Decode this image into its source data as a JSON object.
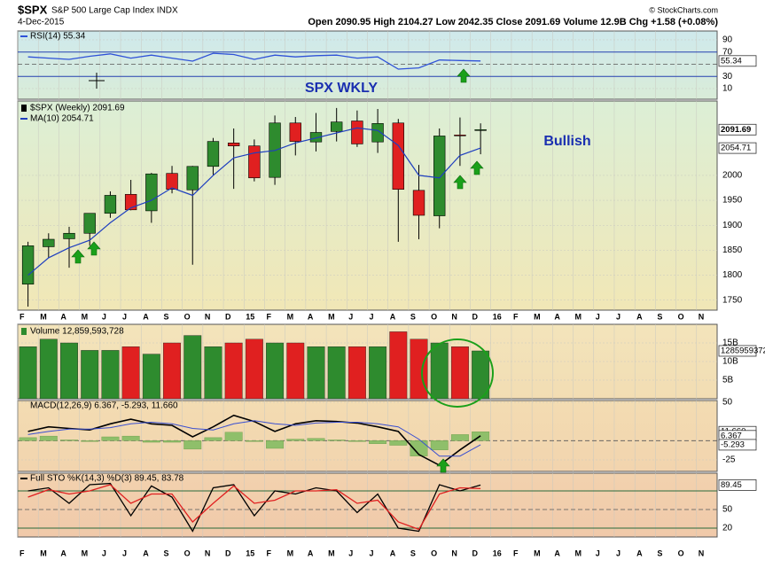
{
  "header": {
    "symbol": "$SPX",
    "name": "S&P 500 Large Cap Index INDX",
    "date": "4-Dec-2015",
    "quote": "Open 2090.95  High 2104.27  Low 2042.35  Close 2091.69  Volume 12.9B  Chg +1.58 (+0.08%)",
    "credit": "© StockCharts.com"
  },
  "chart_data": [
    {
      "type": "line",
      "legend": "RSI(14) 55.34",
      "series": [
        {
          "color": "#2f52d8",
          "values": [
            62,
            60,
            58,
            63,
            67,
            60,
            65,
            60,
            55,
            68,
            66,
            58,
            65,
            62,
            64,
            65,
            60,
            62,
            42,
            44,
            57,
            56,
            55.34
          ]
        }
      ],
      "ylim": [
        -7.5,
        104.5
      ],
      "yticks": [
        10,
        30,
        70,
        90
      ],
      "levels": [
        30,
        70
      ],
      "midline": 50,
      "last_values": [
        {
          "value": 55.34,
          "label": "55.34"
        }
      ]
    },
    {
      "type": "candlestick",
      "legend": "$SPX (Weekly) 2091.69",
      "x": [
        "2014-02",
        "2014-03",
        "2014-04",
        "2014-05",
        "2014-06",
        "2014-07",
        "2014-08",
        "2014-09",
        "2014-10",
        "2014-11",
        "2014-12",
        "2015-01",
        "2015-02",
        "2015-03",
        "2015-04",
        "2015-05",
        "2015-06",
        "2015-07",
        "2015-08",
        "2015-09",
        "2015-10",
        "2015-11",
        "2015-12"
      ],
      "open": [
        1782,
        1857,
        1873,
        1884,
        1924,
        1962,
        1929,
        2004,
        1971,
        2018,
        2065,
        2059,
        1996,
        2105,
        2067,
        2088,
        2109,
        2067,
        2105,
        1970,
        1919,
        2081,
        2090.95
      ],
      "high": [
        1867,
        1884,
        1897,
        1924,
        1968,
        1991,
        2005,
        2019,
        2019,
        2075,
        2094,
        2072,
        2120,
        2117,
        2125,
        2135,
        2130,
        2133,
        2113,
        2021,
        2094,
        2116,
        2104.27
      ],
      "low": [
        1737,
        1834,
        1815,
        1859,
        1915,
        1930,
        1905,
        1964,
        1821,
        2001,
        1973,
        1988,
        1981,
        2040,
        2048,
        2068,
        2057,
        2045,
        1867,
        1872,
        1894,
        2019,
        2042.35
      ],
      "close": [
        1859,
        1872,
        1884,
        1924,
        1960,
        1931,
        2003,
        1972,
        2018,
        2068,
        2059,
        1995,
        2105,
        2068,
        2086,
        2107,
        2063,
        2104,
        1972,
        1920,
        2079,
        2080,
        2091.69
      ],
      "up_color": "#2e8b2e",
      "down_color": "#e02020",
      "series": [
        {
          "name": "MA(10) 2054.71",
          "color": "#1f3fbf",
          "values": [
            1800,
            1835,
            1855,
            1870,
            1905,
            1935,
            1950,
            1975,
            1960,
            2000,
            2035,
            2045,
            2050,
            2065,
            2075,
            2085,
            2095,
            2090,
            2060,
            2000,
            1995,
            2040,
            2054.71
          ]
        }
      ],
      "ylim": [
        1730,
        2149
      ],
      "yticks": [
        1750,
        1800,
        1850,
        1900,
        1950,
        2000
      ],
      "last_values": [
        {
          "value": 2091.69,
          "label": "2091.69"
        },
        {
          "value": 2054.71,
          "label": "2054.71"
        }
      ],
      "annotations": [
        "SPX WKLY",
        "Bullish"
      ],
      "grid": true,
      "xlim": [
        "2014-02",
        "2016-12"
      ],
      "xticks": [
        {
          "value": "2014-02",
          "label": "F"
        },
        {
          "value": "2014-03",
          "label": "M"
        },
        {
          "value": "2014-04",
          "label": "A"
        },
        {
          "value": "2014-05",
          "label": "M"
        },
        {
          "value": "2014-06",
          "label": "J"
        },
        {
          "value": "2014-07",
          "label": "J"
        },
        {
          "value": "2014-08",
          "label": "A"
        },
        {
          "value": "2014-09",
          "label": "S"
        },
        {
          "value": "2014-10",
          "label": "O"
        },
        {
          "value": "2014-11",
          "label": "N"
        },
        {
          "value": "2014-12",
          "label": "D"
        },
        {
          "value": "2015-01",
          "label": "15"
        },
        {
          "value": "2015-02",
          "label": "F"
        },
        {
          "value": "2015-03",
          "label": "M"
        },
        {
          "value": "2015-04",
          "label": "A"
        },
        {
          "value": "2015-05",
          "label": "M"
        },
        {
          "value": "2015-06",
          "label": "J"
        },
        {
          "value": "2015-07",
          "label": "J"
        },
        {
          "value": "2015-08",
          "label": "A"
        },
        {
          "value": "2015-09",
          "label": "S"
        },
        {
          "value": "2015-10",
          "label": "O"
        },
        {
          "value": "2015-11",
          "label": "N"
        },
        {
          "value": "2015-12",
          "label": "D"
        },
        {
          "value": "2016-01",
          "label": "16"
        },
        {
          "value": "2016-02",
          "label": "F"
        },
        {
          "value": "2016-03",
          "label": "M"
        },
        {
          "value": "2016-04",
          "label": "A"
        },
        {
          "value": "2016-05",
          "label": "M"
        },
        {
          "value": "2016-06",
          "label": "J"
        },
        {
          "value": "2016-07",
          "label": "J"
        },
        {
          "value": "2016-08",
          "label": "A"
        },
        {
          "value": "2016-09",
          "label": "S"
        },
        {
          "value": "2016-10",
          "label": "O"
        },
        {
          "value": "2016-11",
          "label": "N"
        }
      ]
    },
    {
      "type": "bar",
      "legend": "Volume 12,859,593,728",
      "values": [
        14000000000,
        16000000000,
        15000000000,
        13000000000,
        13000000000,
        14000000000,
        12000000000,
        15000000000,
        17000000000,
        14000000000,
        15000000000,
        16000000000,
        15000000000,
        15000000000,
        14000000000,
        14000000000,
        14000000000,
        14000000000,
        18000000000,
        16000000000,
        15000000000,
        14000000000,
        12859593728
      ],
      "ylim": [
        0,
        20000000000
      ],
      "yticks": [
        {
          "value": 5000000000,
          "label": "5B"
        },
        {
          "value": 10000000000,
          "label": "10B"
        },
        {
          "value": 15000000000,
          "label": "15B"
        }
      ],
      "last_values": [
        {
          "value": 12859593728,
          "label": "12859593728"
        }
      ]
    },
    {
      "type": "macd",
      "legend": "MACD(12,26,9) 6.367, -5.293, 11.660",
      "series": [
        {
          "color": "#000000",
          "values": [
            12,
            18,
            16,
            14,
            22,
            28,
            22,
            20,
            5,
            18,
            33,
            25,
            12,
            22,
            26,
            25,
            23,
            18,
            12,
            -18,
            -32,
            -12,
            6.367
          ]
        },
        {
          "color": "#3a4fd0",
          "values": [
            8,
            12,
            15,
            15,
            17,
            22,
            24,
            22,
            16,
            14,
            22,
            26,
            22,
            20,
            23,
            24,
            24,
            22,
            18,
            2,
            -20,
            -20,
            -5.293
          ]
        }
      ],
      "histogram": {
        "color": "#8fbf6a",
        "values": [
          4,
          6,
          1,
          -1,
          5,
          6,
          -2,
          -2,
          -11,
          4,
          11,
          -1,
          -10,
          2,
          3,
          1,
          -1,
          -4,
          -6,
          -20,
          -12,
          8,
          11.66
        ]
      },
      "ylim": [
        -40,
        52.3
      ],
      "yticks": [
        -25,
        50
      ],
      "midline": 0,
      "last_values": [
        {
          "value": 11.66,
          "label": "11.660"
        },
        {
          "value": 6.367,
          "label": "6.367"
        },
        {
          "value": -5.293,
          "label": "-5.293"
        }
      ]
    },
    {
      "type": "line",
      "legend": "Full STO %K(14,3) %D(3) 89.45, 83.78",
      "series": [
        {
          "color": "#000000",
          "values": [
            80,
            85,
            60,
            90,
            92,
            40,
            88,
            70,
            15,
            85,
            90,
            40,
            80,
            75,
            85,
            80,
            45,
            75,
            20,
            15,
            90,
            80,
            89.45
          ]
        },
        {
          "color": "#e02020",
          "values": [
            70,
            82,
            75,
            80,
            90,
            60,
            75,
            75,
            30,
            60,
            88,
            60,
            65,
            80,
            80,
            82,
            60,
            65,
            30,
            18,
            75,
            85,
            83.78
          ]
        }
      ],
      "ylim": [
        5.7,
        108.6
      ],
      "yticks": [
        20,
        50
      ],
      "levels": [
        20,
        80
      ],
      "midline": 50,
      "last_values": [
        {
          "value": 89.45,
          "label": "89.45"
        }
      ]
    }
  ]
}
